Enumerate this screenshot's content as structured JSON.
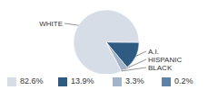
{
  "chart_data": {
    "type": "pie",
    "categories": [
      "WHITE",
      "A.I.",
      "HISPANIC",
      "BLACK"
    ],
    "values": [
      82.6,
      13.9,
      3.3,
      0.2
    ],
    "value_labels": [
      "82.6%",
      "13.9%",
      "3.3%",
      "0.2%"
    ],
    "colors": [
      "#d6dde6",
      "#2f5b82",
      "#a3b3c8",
      "#5f81a5"
    ]
  }
}
